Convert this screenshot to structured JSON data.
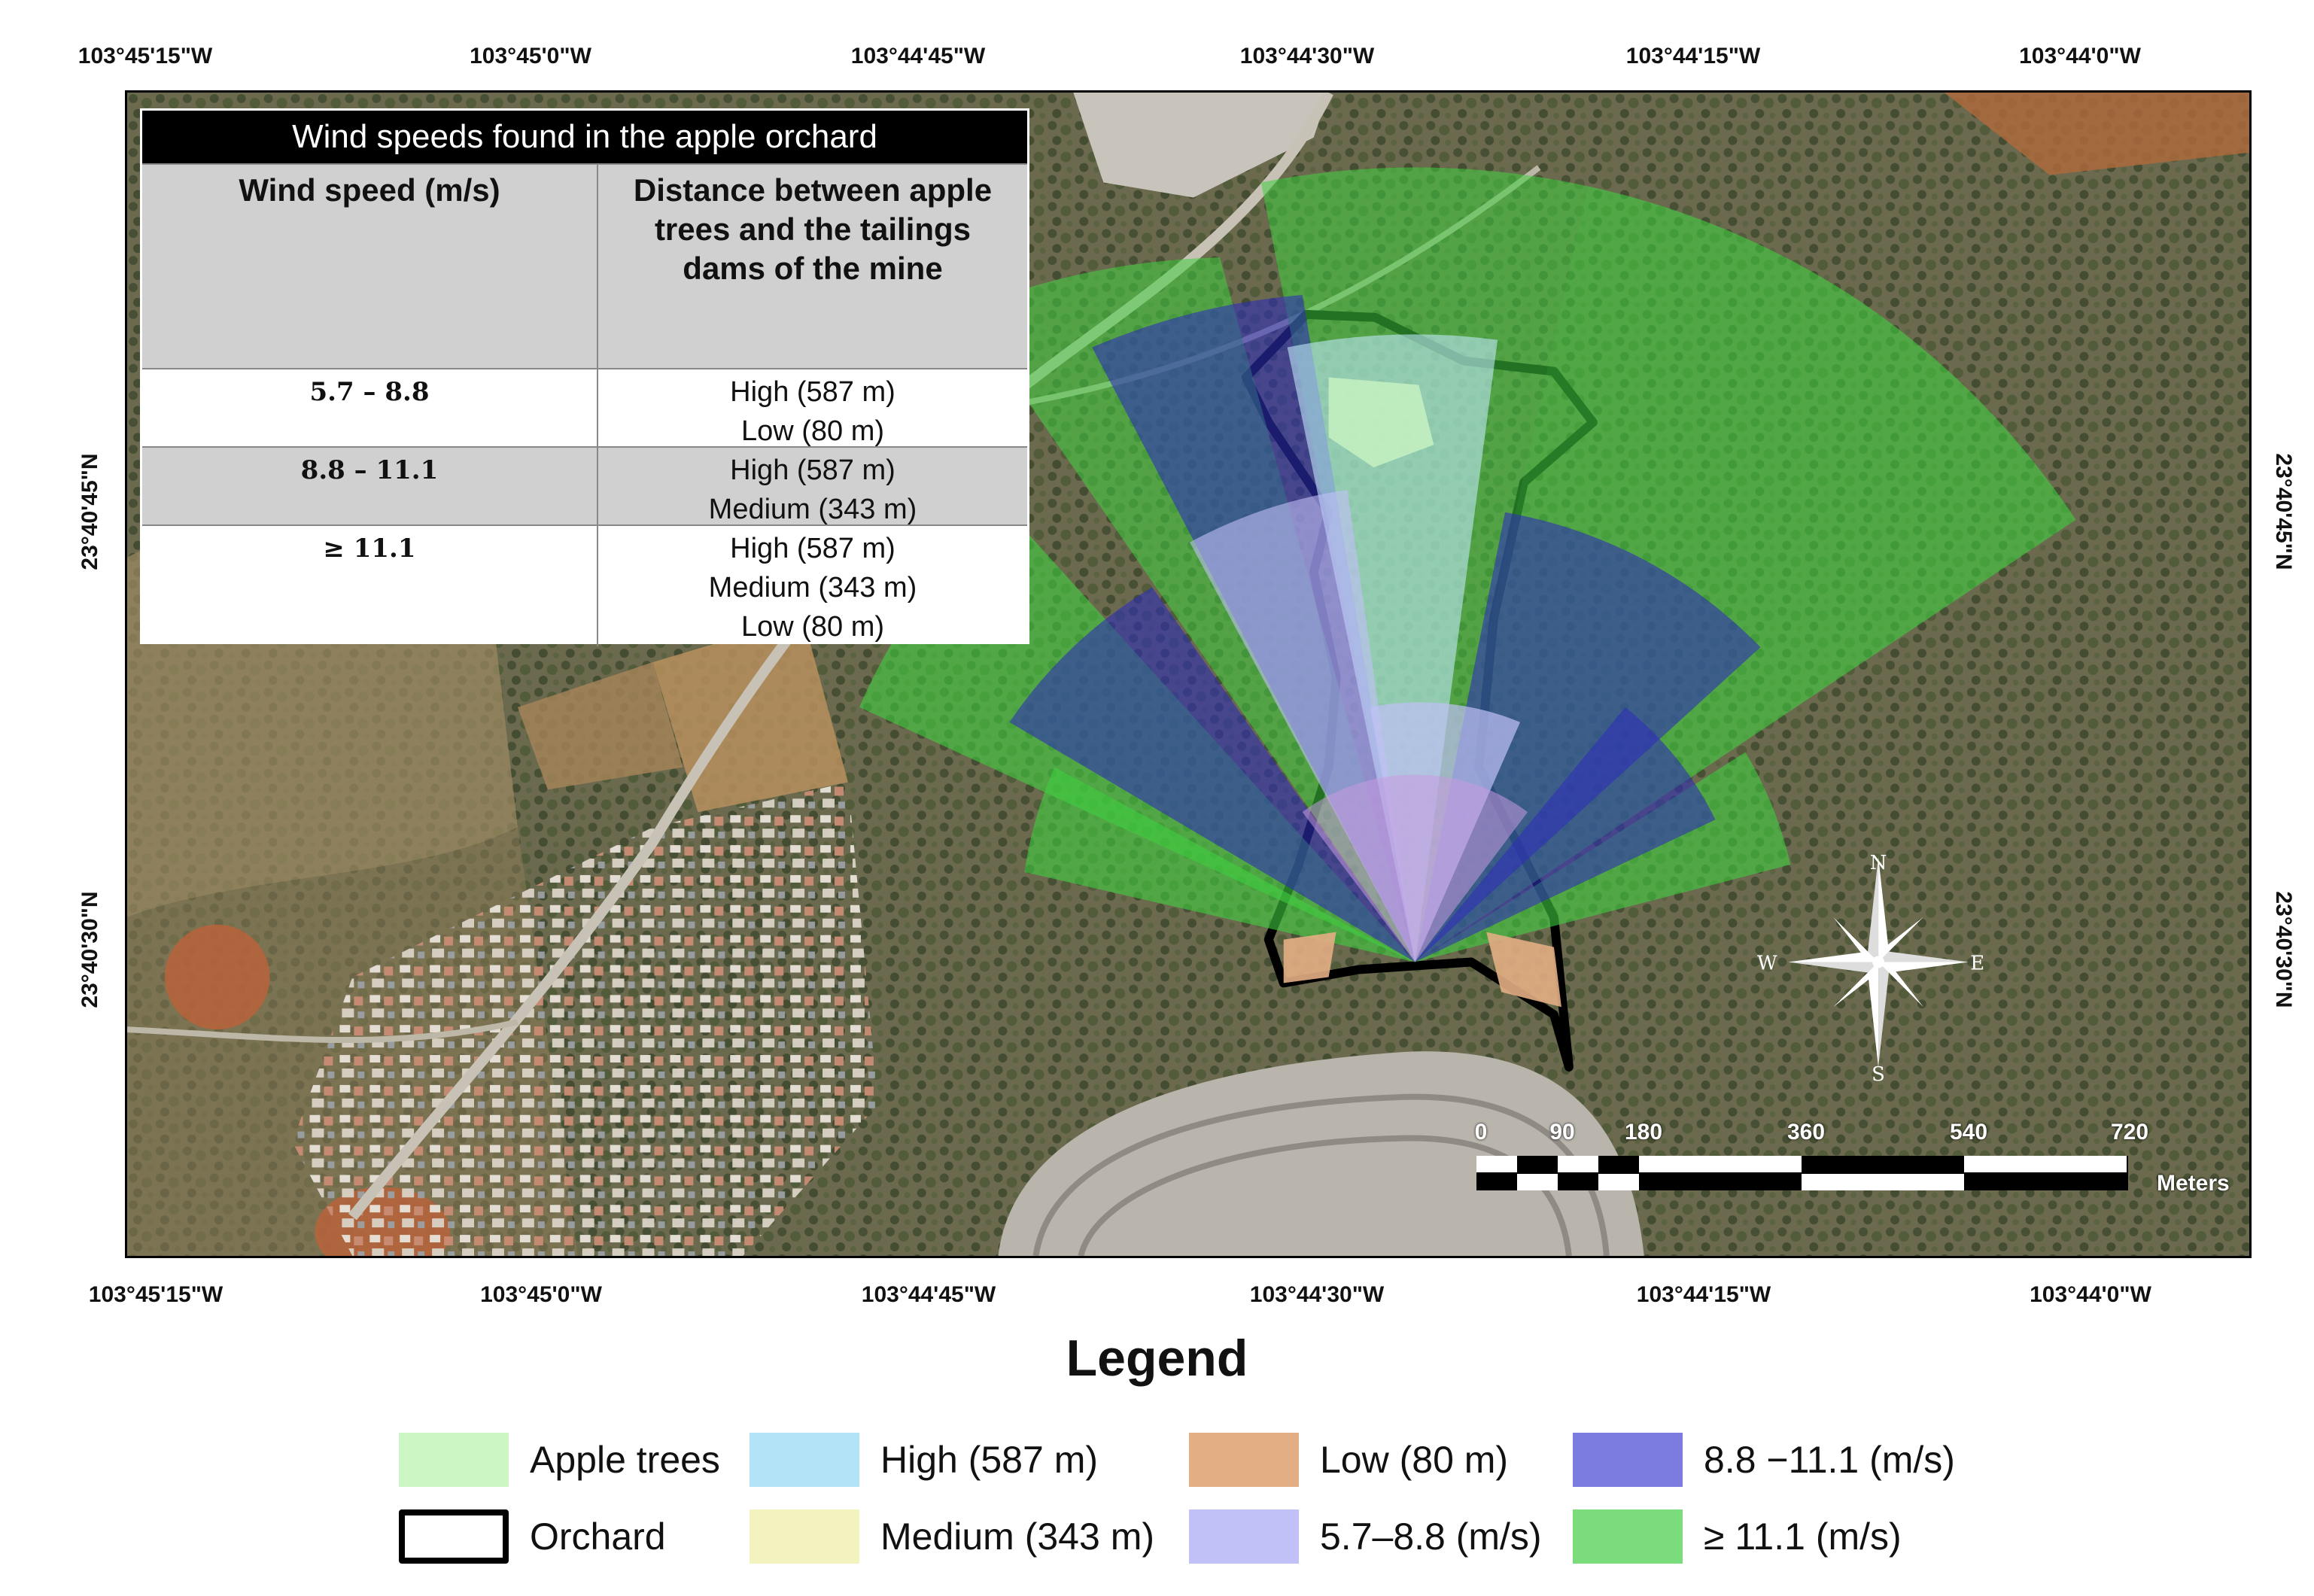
{
  "coords": {
    "top": [
      "103°45'15\"W",
      "103°45'0\"W",
      "103°44'45\"W",
      "103°44'30\"W",
      "103°44'15\"W",
      "103°44'0\"W"
    ],
    "bottom": [
      "103°45'15\"W",
      "103°45'0\"W",
      "103°44'45\"W",
      "103°44'30\"W",
      "103°44'15\"W",
      "103°44'0\"W"
    ],
    "left": [
      "23°40'45\"N",
      "23°40'30\"N"
    ],
    "right": [
      "23°40'45\"N",
      "23°40'30\"N"
    ]
  },
  "table": {
    "title": "Wind speeds found in the apple orchard",
    "col1": "Wind speed (m/s)",
    "col2": "Distance between apple trees and the tailings dams of the mine",
    "rows": [
      {
        "speed": "5.7 – 8.8",
        "lines": [
          "High (587 m)",
          "Low (80 m)"
        ]
      },
      {
        "speed": "8.8 – 11.1",
        "lines": [
          "High (587 m)",
          "Medium (343 m)"
        ]
      },
      {
        "speed": "≥ 11.1",
        "lines": [
          "High (587 m)",
          "Medium (343 m)",
          "Low (80 m)"
        ]
      }
    ]
  },
  "compass": {
    "n": "N",
    "e": "E",
    "s": "S",
    "w": "W"
  },
  "scale": {
    "ticks": [
      "0",
      "90",
      "180",
      "360",
      "540",
      "720"
    ],
    "unit": "Meters"
  },
  "legend": {
    "title": "Legend",
    "items": [
      {
        "label": "Apple trees",
        "color": "#ccf7c4"
      },
      {
        "label": "Orchard",
        "color": "#ffffff"
      },
      {
        "label": "High (587 m)",
        "color": "#b2e3f6"
      },
      {
        "label": "Medium (343 m)",
        "color": "#f3f3bf"
      },
      {
        "label": "Low (80 m)",
        "color": "#e3ae84"
      },
      {
        "label": "5.7–8.8 (m/s)",
        "color": "#c1c0f7"
      },
      {
        "label": "8.8 −11.1 (m/s)",
        "color": "#7b7be0"
      },
      {
        "label": "≥ 11.1 (m/s)",
        "color": "#7bdc7b"
      }
    ]
  }
}
